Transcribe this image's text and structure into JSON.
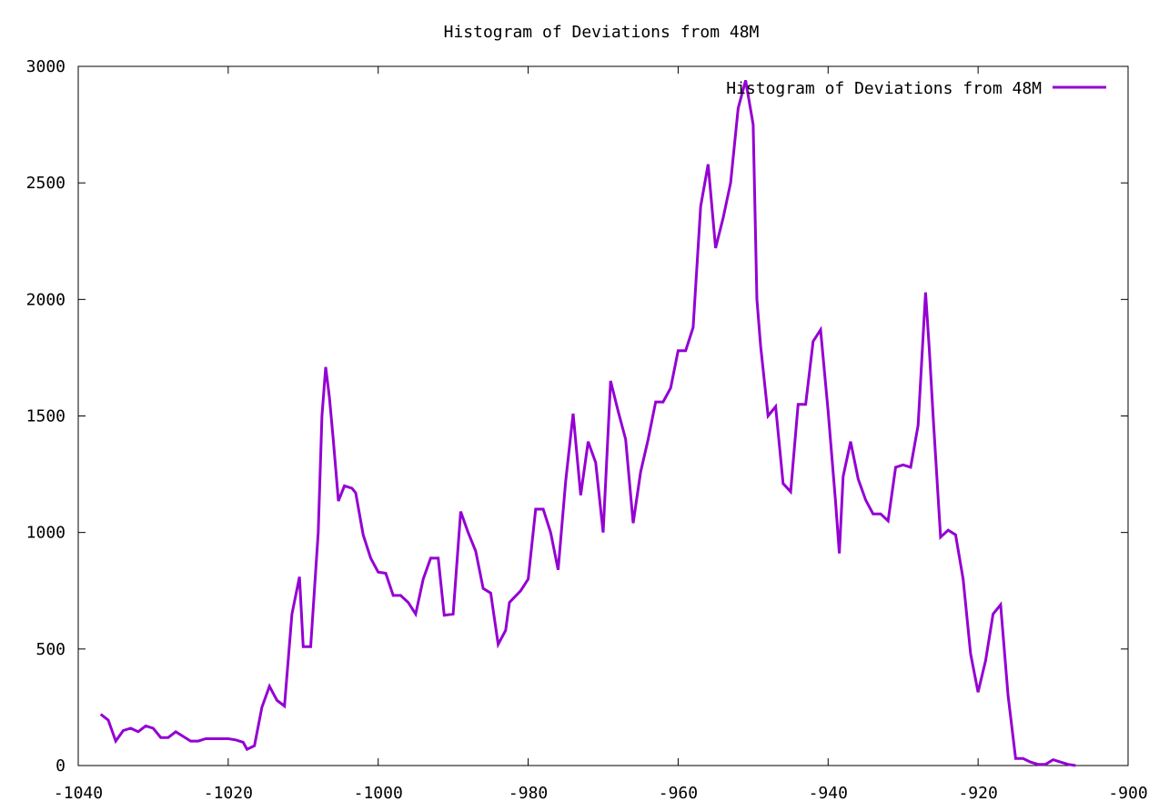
{
  "chart_data": {
    "type": "line",
    "title": "Histogram of Deviations from 48M",
    "xlabel": "",
    "ylabel": "",
    "xlim": [
      -1040,
      -900
    ],
    "ylim": [
      0,
      3000
    ],
    "xticks": [
      -1040,
      -1020,
      -1000,
      -980,
      -960,
      -940,
      -920,
      -900
    ],
    "yticks": [
      0,
      500,
      1000,
      1500,
      2000,
      2500,
      3000
    ],
    "grid": false,
    "legend_position": "top-right",
    "series": [
      {
        "name": "Histogram of Deviations from 48M",
        "color": "#9400D3",
        "points": [
          [
            -1037,
            220
          ],
          [
            -1036,
            195
          ],
          [
            -1035,
            105
          ],
          [
            -1034,
            150
          ],
          [
            -1033,
            160
          ],
          [
            -1032,
            145
          ],
          [
            -1031,
            170
          ],
          [
            -1030,
            160
          ],
          [
            -1029,
            120
          ],
          [
            -1028,
            120
          ],
          [
            -1027,
            145
          ],
          [
            -1026,
            125
          ],
          [
            -1025,
            105
          ],
          [
            -1024,
            105
          ],
          [
            -1023,
            115
          ],
          [
            -1022,
            115
          ],
          [
            -1021,
            115
          ],
          [
            -1020,
            115
          ],
          [
            -1019,
            110
          ],
          [
            -1018,
            100
          ],
          [
            -1017.5,
            70
          ],
          [
            -1016.5,
            85
          ],
          [
            -1015.5,
            250
          ],
          [
            -1014.5,
            340
          ],
          [
            -1013.5,
            280
          ],
          [
            -1012.5,
            255
          ],
          [
            -1011.5,
            650
          ],
          [
            -1010.5,
            810
          ],
          [
            -1010,
            510
          ],
          [
            -1009,
            510
          ],
          [
            -1008,
            1000
          ],
          [
            -1007.5,
            1500
          ],
          [
            -1007,
            1710
          ],
          [
            -1006.5,
            1580
          ],
          [
            -1006,
            1400
          ],
          [
            -1005.3,
            1135
          ],
          [
            -1004.5,
            1200
          ],
          [
            -1003.5,
            1190
          ],
          [
            -1003,
            1170
          ],
          [
            -1002,
            990
          ],
          [
            -1001,
            890
          ],
          [
            -1000,
            830
          ],
          [
            -999,
            825
          ],
          [
            -998,
            730
          ],
          [
            -997,
            730
          ],
          [
            -996,
            700
          ],
          [
            -995,
            650
          ],
          [
            -994,
            800
          ],
          [
            -993,
            890
          ],
          [
            -992,
            890
          ],
          [
            -991.2,
            645
          ],
          [
            -990,
            650
          ],
          [
            -989,
            1090
          ],
          [
            -988,
            1000
          ],
          [
            -987,
            920
          ],
          [
            -986,
            760
          ],
          [
            -985,
            740
          ],
          [
            -984,
            520
          ],
          [
            -983,
            580
          ],
          [
            -982.5,
            700
          ],
          [
            -981,
            750
          ],
          [
            -980,
            800
          ],
          [
            -979,
            1100
          ],
          [
            -978,
            1100
          ],
          [
            -977,
            1000
          ],
          [
            -976,
            840
          ],
          [
            -975,
            1220
          ],
          [
            -974,
            1510
          ],
          [
            -973,
            1160
          ],
          [
            -972,
            1390
          ],
          [
            -971,
            1300
          ],
          [
            -970,
            1000
          ],
          [
            -969,
            1650
          ],
          [
            -968,
            1520
          ],
          [
            -967,
            1400
          ],
          [
            -966,
            1040
          ],
          [
            -965,
            1260
          ],
          [
            -964,
            1400
          ],
          [
            -963,
            1560
          ],
          [
            -962,
            1560
          ],
          [
            -961,
            1620
          ],
          [
            -960,
            1780
          ],
          [
            -959,
            1780
          ],
          [
            -958,
            1880
          ],
          [
            -957,
            2400
          ],
          [
            -956,
            2580
          ],
          [
            -955,
            2220
          ],
          [
            -954,
            2350
          ],
          [
            -953,
            2500
          ],
          [
            -952,
            2820
          ],
          [
            -951,
            2940
          ],
          [
            -950,
            2750
          ],
          [
            -949.5,
            2000
          ],
          [
            -949,
            1800
          ],
          [
            -948,
            1500
          ],
          [
            -947,
            1540
          ],
          [
            -946,
            1210
          ],
          [
            -945,
            1175
          ],
          [
            -944,
            1550
          ],
          [
            -943,
            1550
          ],
          [
            -942,
            1820
          ],
          [
            -941,
            1870
          ],
          [
            -940,
            1520
          ],
          [
            -939,
            1130
          ],
          [
            -938.5,
            910
          ],
          [
            -938,
            1240
          ],
          [
            -937,
            1390
          ],
          [
            -936,
            1230
          ],
          [
            -935,
            1140
          ],
          [
            -934,
            1080
          ],
          [
            -933,
            1080
          ],
          [
            -932,
            1050
          ],
          [
            -931,
            1280
          ],
          [
            -930,
            1290
          ],
          [
            -929,
            1280
          ],
          [
            -928,
            1460
          ],
          [
            -927,
            2030
          ],
          [
            -926.5,
            1780
          ],
          [
            -926,
            1500
          ],
          [
            -925,
            980
          ],
          [
            -924,
            1010
          ],
          [
            -923,
            990
          ],
          [
            -922,
            800
          ],
          [
            -921,
            480
          ],
          [
            -920,
            315
          ],
          [
            -919,
            450
          ],
          [
            -918,
            650
          ],
          [
            -917,
            690
          ],
          [
            -916,
            300
          ],
          [
            -915,
            30
          ],
          [
            -914,
            30
          ],
          [
            -913,
            15
          ],
          [
            -912,
            5
          ],
          [
            -911,
            5
          ],
          [
            -910,
            25
          ],
          [
            -909,
            15
          ],
          [
            -908,
            5
          ],
          [
            -907,
            0
          ]
        ]
      }
    ]
  }
}
